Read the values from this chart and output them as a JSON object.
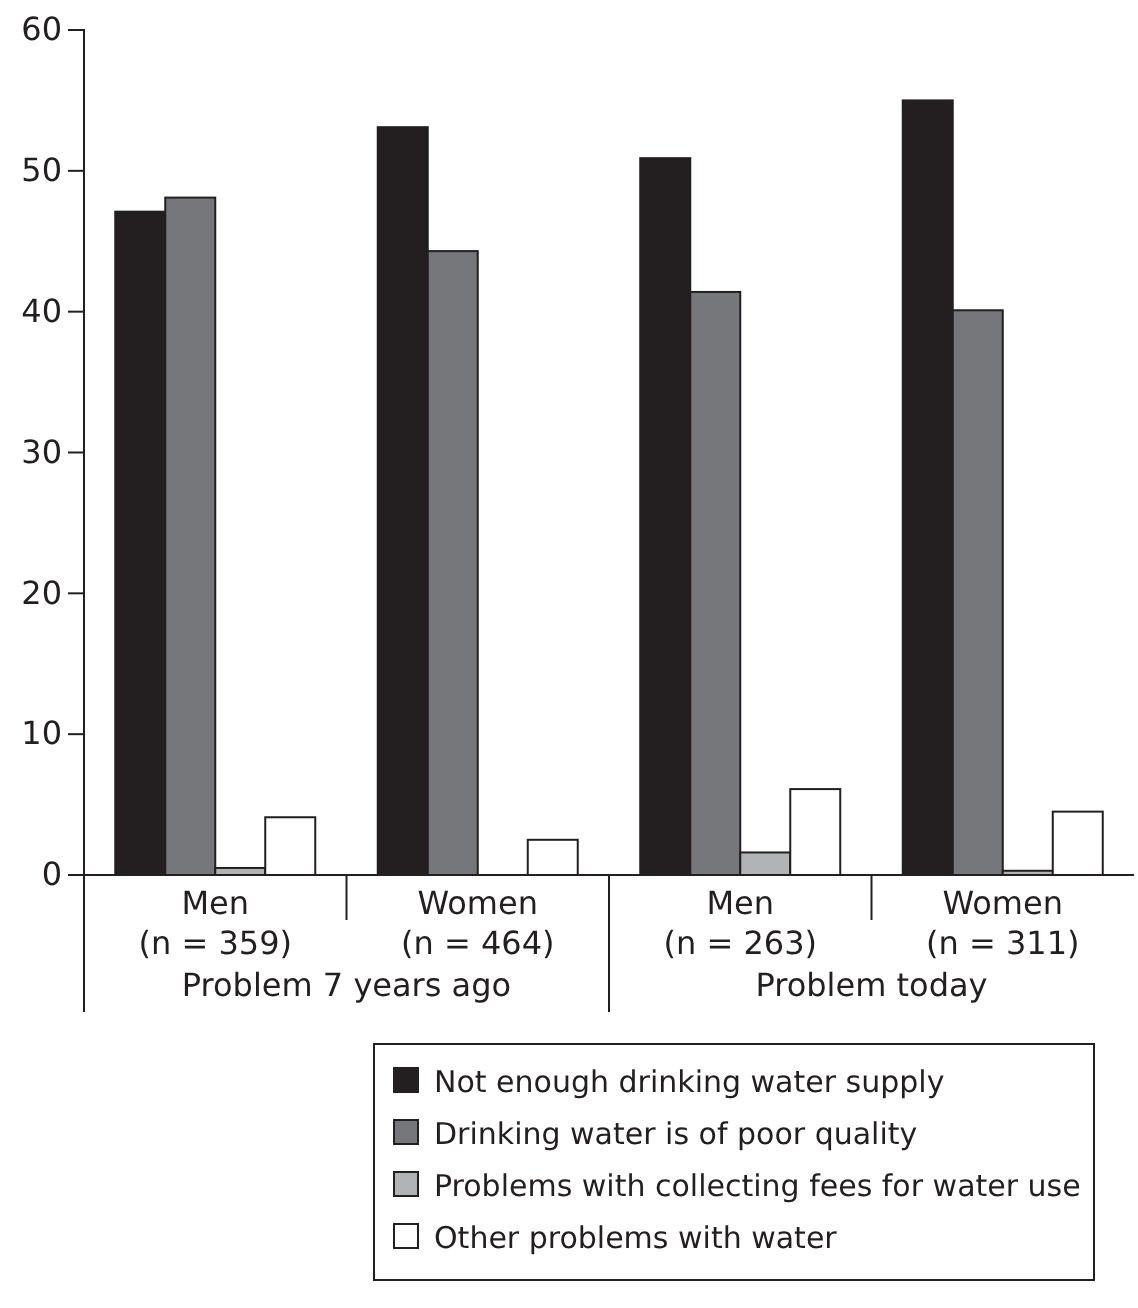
{
  "chart_data": {
    "type": "bar",
    "categories": [
      "Men (n = 359)",
      "Women (n = 464)",
      "Men (n = 263)",
      "Women (n = 311)"
    ],
    "series": [
      {
        "name": "Not enough drinking water supply",
        "color": "#231f20",
        "values": [
          47.1,
          53.1,
          50.9,
          55.0
        ]
      },
      {
        "name": "Drinking water is of poor quality",
        "color": "#76777a",
        "values": [
          48.1,
          44.3,
          41.4,
          40.1
        ]
      },
      {
        "name": "Problems with collecting fees for water use",
        "color": "#b1b3b4",
        "values": [
          0.5,
          0,
          1.6,
          0.3
        ]
      },
      {
        "name": "Other problems with water",
        "color": "#ffffff",
        "values": [
          4.1,
          2.5,
          6.1,
          4.5
        ]
      }
    ],
    "ylim": [
      0,
      60
    ],
    "yticks": [
      0,
      10,
      20,
      30,
      40,
      50,
      60
    ],
    "annotations": [
      "Problem 7 years ago",
      "Problem today"
    ],
    "grid": false,
    "legend": "bottom"
  }
}
